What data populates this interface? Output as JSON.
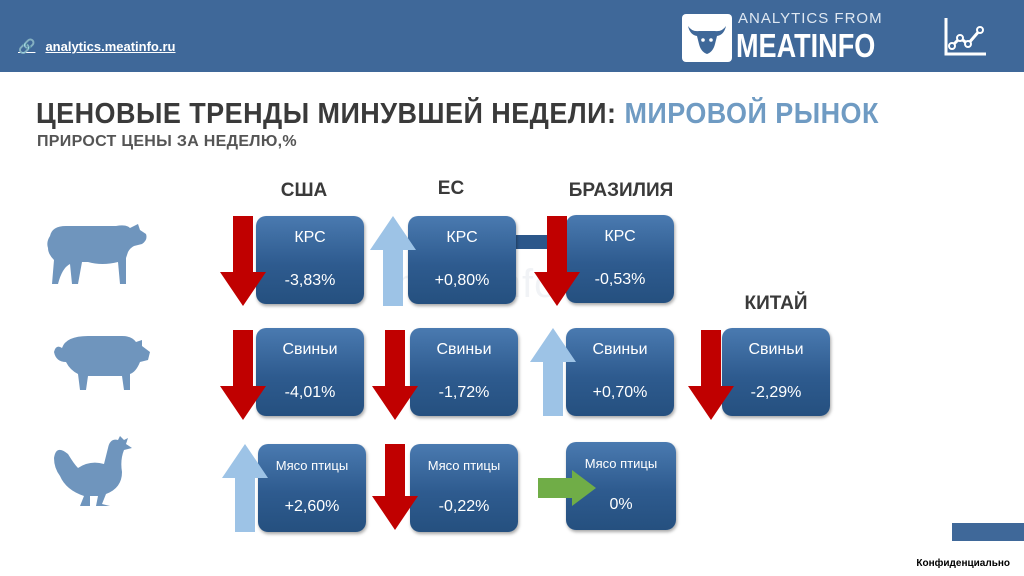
{
  "header": {
    "site_link": "analytics.meatinfo.ru",
    "logo_small": "ANALYTICS FROM",
    "logo_big": "MEATINFO"
  },
  "title": {
    "main": "ЦЕНОВЫЕ ТРЕНДЫ МИНУВШЕЙ НЕДЕЛИ:",
    "accent": "МИРОВОЙ РЫНОК",
    "subtitle": "ПРИРОСТ ЦЕНЫ ЗА НЕДЕЛЮ,%"
  },
  "columns": {
    "usa": "США",
    "eu": "ЕС",
    "brazil": "БРАЗИЛИЯ",
    "china": "КИТАЙ"
  },
  "tiles": {
    "usa_cattle": {
      "label": "КРС",
      "value": "-3,83%",
      "trend": "down"
    },
    "eu_cattle": {
      "label": "КРС",
      "value": "+0,80%",
      "trend": "up"
    },
    "brazil_cattle": {
      "label": "КРС",
      "value": "-0,53%",
      "trend": "down"
    },
    "usa_pork": {
      "label": "Свиньи",
      "value": "-4,01%",
      "trend": "down"
    },
    "eu_pork": {
      "label": "Свиньи",
      "value": "-1,72%",
      "trend": "down"
    },
    "brazil_pork": {
      "label": "Свиньи",
      "value": "+0,70%",
      "trend": "up"
    },
    "china_pork": {
      "label": "Свиньи",
      "value": "-2,29%",
      "trend": "down"
    },
    "usa_poultry": {
      "label": "Мясо птицы",
      "value": "+2,60%",
      "trend": "up"
    },
    "eu_poultry": {
      "label": "Мясо птицы",
      "value": "-0,22%",
      "trend": "down"
    },
    "brazil_poultry": {
      "label": "Мясо птицы",
      "value": "0%",
      "trend": "flat"
    }
  },
  "watermark": "meatinfo",
  "footer": "Конфиденциально",
  "colors": {
    "header": "#3f6899",
    "accent": "#6f9bc3",
    "down_arrow": "#c00000",
    "up_arrow": "#9dc3e6",
    "flat_arrow": "#70ad47",
    "animal": "#6f95bd"
  },
  "icons": [
    "link-icon",
    "bull-logo-icon",
    "line-chart-icon",
    "cow-icon",
    "pig-icon",
    "chicken-icon"
  ]
}
